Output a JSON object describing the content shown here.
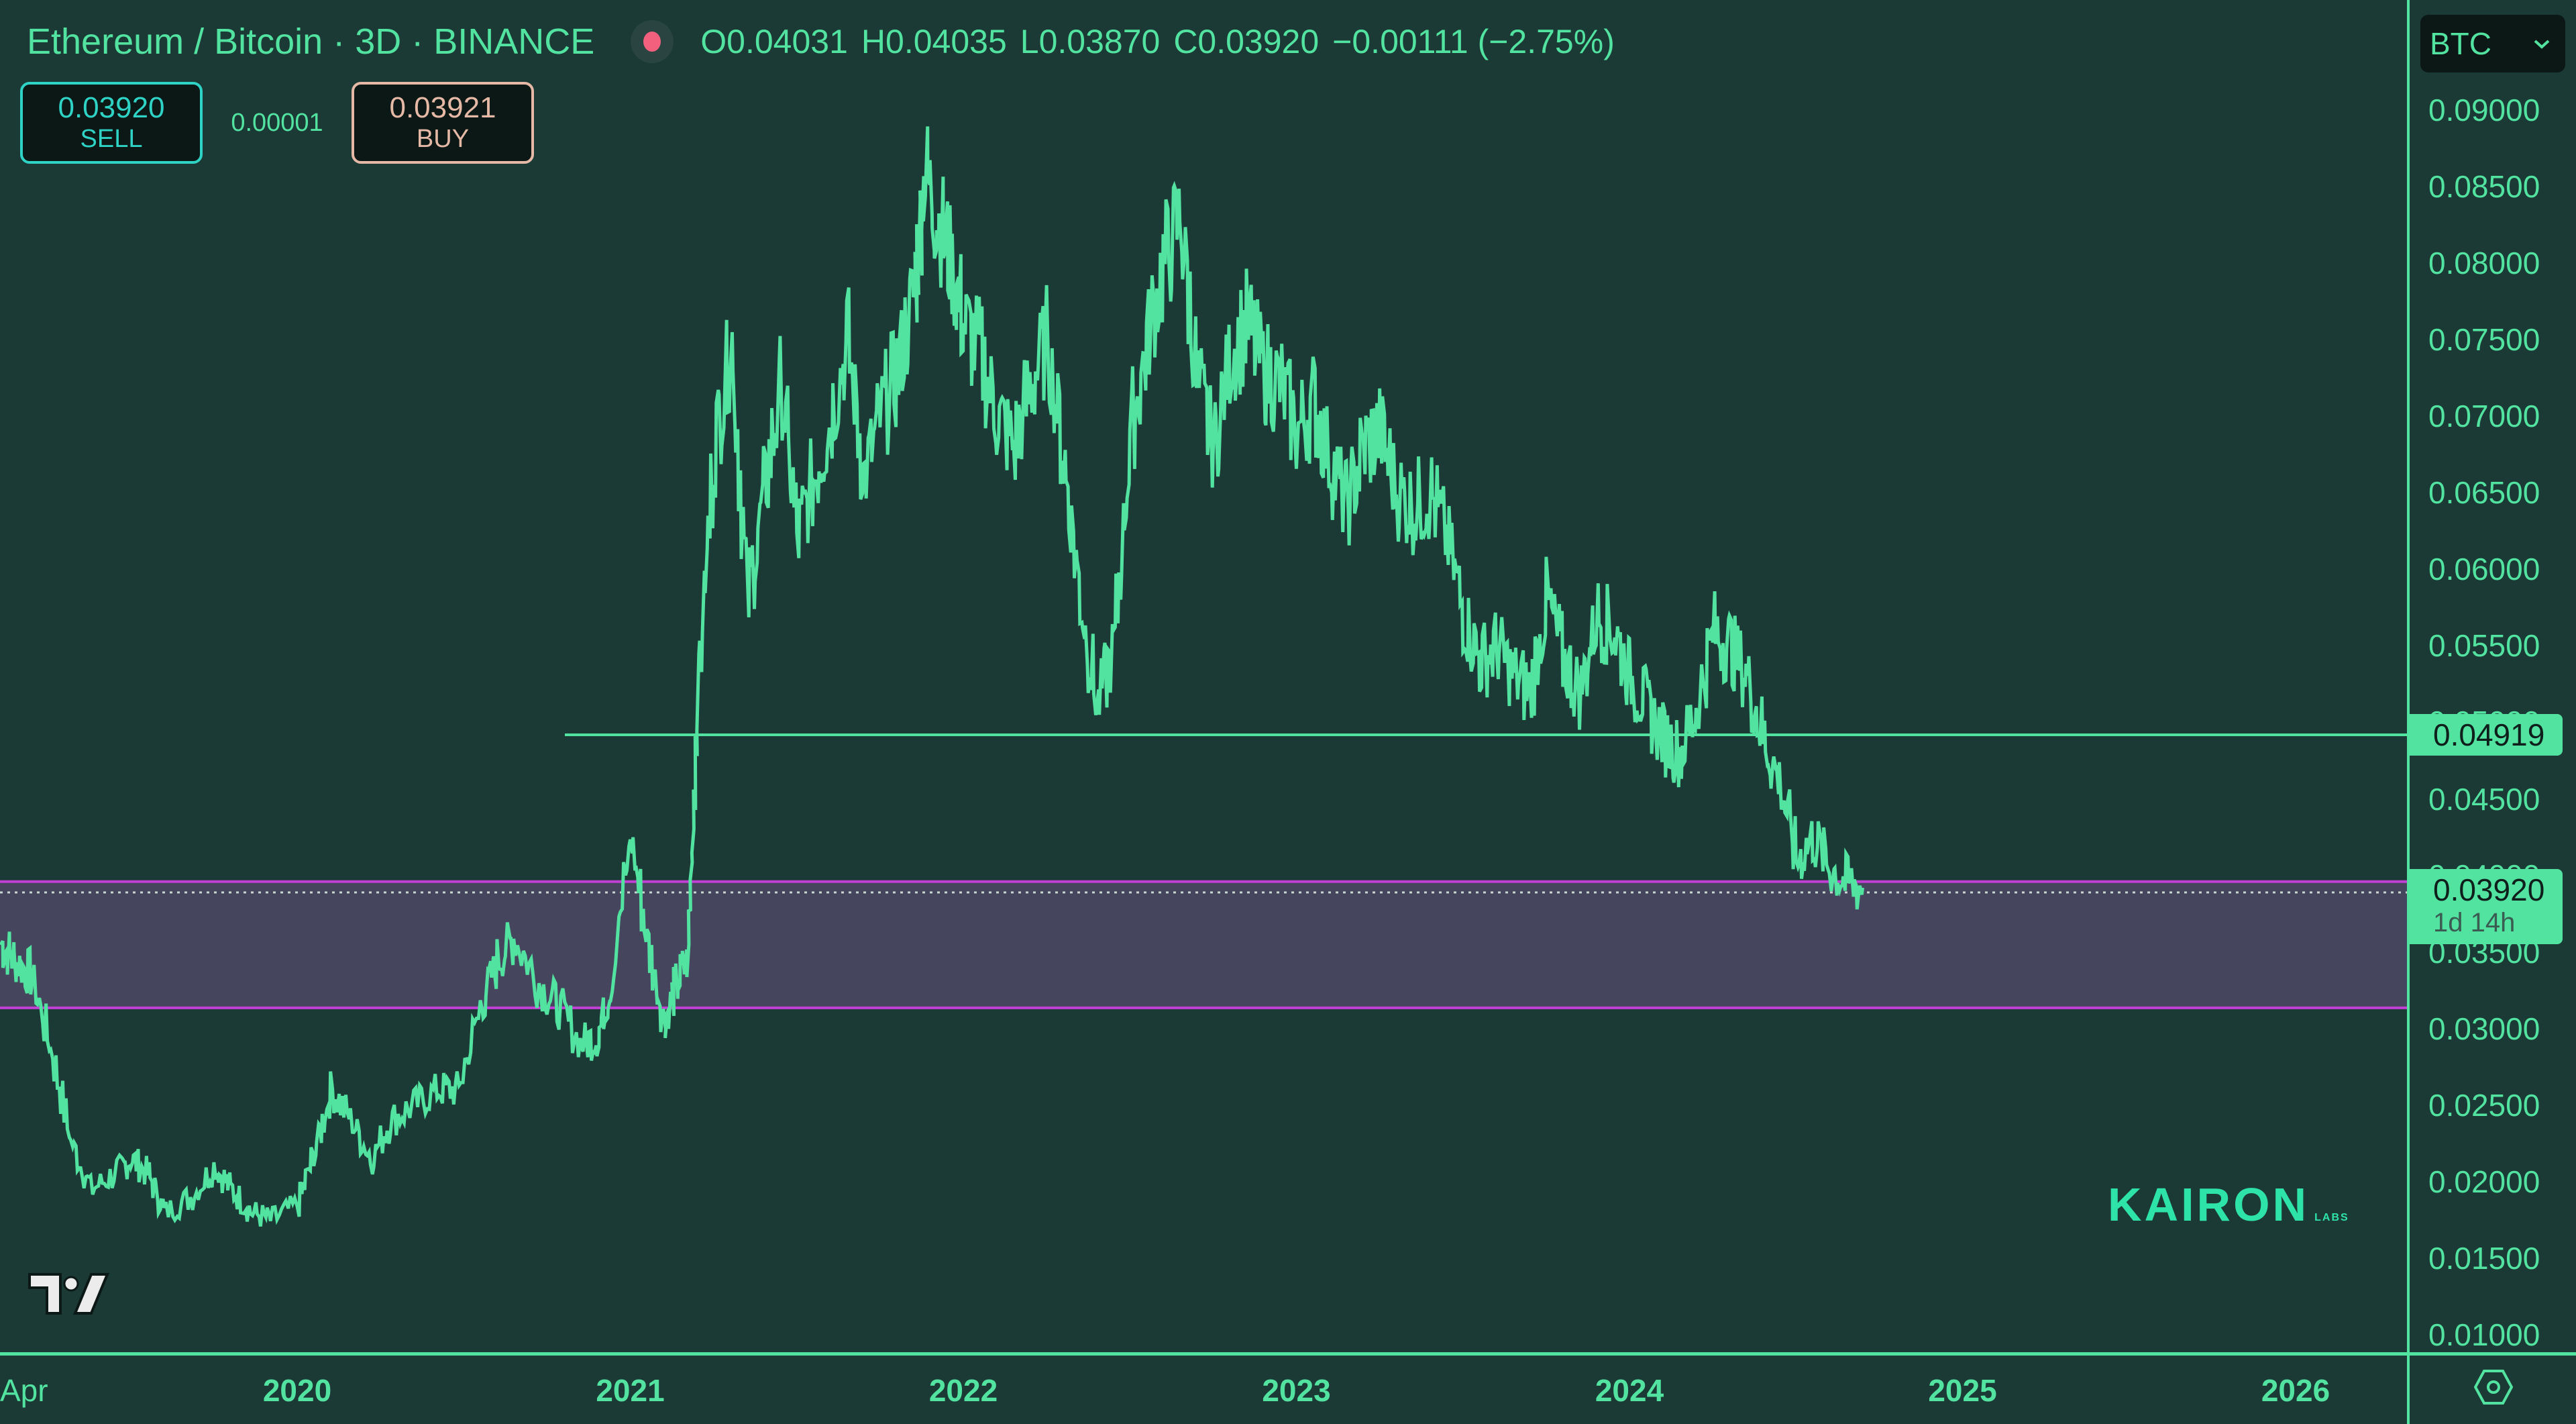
{
  "header": {
    "title": "Ethereum / Bitcoin · 3D · BINANCE",
    "status_color": "#f2607e",
    "ohlc": {
      "open": "O0.04031",
      "high": "H0.04035",
      "low": "L0.03870",
      "close": "C0.03920",
      "change": "−0.00111 (−2.75%)"
    }
  },
  "trade": {
    "sell_price": "0.03920",
    "sell_label": "SELL",
    "spread": "0.00001",
    "buy_price": "0.03921",
    "buy_label": "BUY"
  },
  "currency_selector": {
    "value": "BTC",
    "icon": "chevron-down-icon"
  },
  "price_labels": {
    "line_level": "0.04919",
    "last_price": "0.03920",
    "countdown": "1d 14h"
  },
  "watermark": {
    "brand": "KAIRON",
    "sub": "LABS",
    "logo": "tradingview-logo"
  },
  "colors": {
    "background": "#1b3a36",
    "series": "#52e3a0",
    "zone_fill": "#45465e",
    "zone_border": "#c13fd2",
    "accent_sell": "#2fd3c5",
    "accent_buy": "#e5b9a6"
  },
  "chart_data": {
    "type": "line",
    "title": "Ethereum / Bitcoin · 3D · BINANCE",
    "xlabel": "",
    "ylabel": "BTC",
    "ylim": [
      0.01,
      0.09
    ],
    "yticks": [
      "0.09000",
      "0.08500",
      "0.08000",
      "0.07500",
      "0.07000",
      "0.06500",
      "0.06000",
      "0.05500",
      "0.05000",
      "0.04500",
      "0.04000",
      "0.03500",
      "0.03000",
      "0.02500",
      "0.02000",
      "0.01500",
      "0.01000"
    ],
    "xticks": [
      "Apr",
      "2020",
      "2021",
      "2022",
      "2023",
      "2024",
      "2025",
      "2026"
    ],
    "grid": false,
    "annotations": [
      {
        "type": "hline",
        "value": 0.04919,
        "start": "2020-11",
        "label": "0.04919"
      },
      {
        "type": "zone",
        "from": 0.03135,
        "to": 0.0396,
        "color": "#45465e"
      }
    ],
    "series": [
      {
        "name": "ETHBTC",
        "x": [
          2019.11,
          2019.15,
          2019.2,
          2019.26,
          2019.32,
          2019.38,
          2019.45,
          2019.5,
          2019.55,
          2019.6,
          2019.68,
          2019.75,
          2019.8,
          2019.86,
          2019.92,
          2020.0,
          2020.05,
          2020.1,
          2020.16,
          2020.22,
          2020.28,
          2020.35,
          2020.42,
          2020.48,
          2020.55,
          2020.6,
          2020.65,
          2020.72,
          2020.78,
          2020.85,
          2020.9,
          2020.94,
          2021.0,
          2021.05,
          2021.1,
          2021.13,
          2021.17,
          2021.2,
          2021.25,
          2021.3,
          2021.35,
          2021.4,
          2021.45,
          2021.5,
          2021.55,
          2021.6,
          2021.65,
          2021.7,
          2021.75,
          2021.8,
          2021.85,
          2021.88,
          2021.92,
          2021.96,
          2022.0,
          2022.05,
          2022.1,
          2022.15,
          2022.2,
          2022.25,
          2022.3,
          2022.35,
          2022.4,
          2022.45,
          2022.5,
          2022.55,
          2022.6,
          2022.65,
          2022.7,
          2022.75,
          2022.8,
          2022.85,
          2022.9,
          2022.95,
          2023.0,
          2023.05,
          2023.1,
          2023.15,
          2023.2,
          2023.25,
          2023.3,
          2023.35,
          2023.4,
          2023.45,
          2023.5,
          2023.55,
          2023.6,
          2023.65,
          2023.7,
          2023.75,
          2023.8,
          2023.85,
          2023.9,
          2023.95,
          2024.0,
          2024.05,
          2024.1,
          2024.15,
          2024.2,
          2024.25,
          2024.3,
          2024.35,
          2024.4,
          2024.45,
          2024.5,
          2024.55,
          2024.6,
          2024.65,
          2024.7
        ],
        "values": [
          0.0355,
          0.0345,
          0.0335,
          0.0285,
          0.0225,
          0.0195,
          0.0205,
          0.0215,
          0.0205,
          0.018,
          0.019,
          0.021,
          0.0195,
          0.018,
          0.0175,
          0.0185,
          0.022,
          0.026,
          0.024,
          0.0215,
          0.024,
          0.025,
          0.026,
          0.026,
          0.0315,
          0.0345,
          0.036,
          0.033,
          0.0315,
          0.029,
          0.0295,
          0.033,
          0.0425,
          0.0355,
          0.0305,
          0.0325,
          0.0345,
          0.052,
          0.068,
          0.075,
          0.058,
          0.065,
          0.072,
          0.062,
          0.066,
          0.07,
          0.075,
          0.066,
          0.07,
          0.073,
          0.078,
          0.086,
          0.083,
          0.08,
          0.076,
          0.074,
          0.07,
          0.068,
          0.072,
          0.075,
          0.067,
          0.058,
          0.051,
          0.055,
          0.069,
          0.075,
          0.08,
          0.083,
          0.072,
          0.068,
          0.074,
          0.076,
          0.073,
          0.072,
          0.069,
          0.071,
          0.067,
          0.064,
          0.068,
          0.069,
          0.065,
          0.064,
          0.065,
          0.062,
          0.057,
          0.054,
          0.055,
          0.053,
          0.052,
          0.058,
          0.054,
          0.052,
          0.057,
          0.056,
          0.053,
          0.051,
          0.049,
          0.048,
          0.051,
          0.056,
          0.055,
          0.053,
          0.049,
          0.046,
          0.041,
          0.0425,
          0.0405,
          0.0395,
          0.0392
        ]
      }
    ]
  }
}
